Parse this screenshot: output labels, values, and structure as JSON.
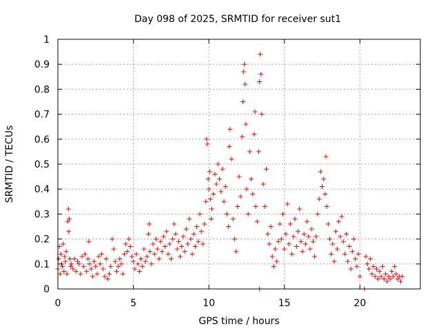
{
  "chart_data": {
    "type": "scatter",
    "title": "Day 098 of 2025, SRMTID for receiver sut1",
    "xlabel": "GPS time / hours",
    "ylabel": "SRMTID / TECUs",
    "xlim": [
      0,
      24
    ],
    "ylim": [
      0,
      1
    ],
    "xticks": [
      "0",
      "5",
      "10",
      "15",
      "20"
    ],
    "yticks": [
      "0",
      "0.1",
      "0.2",
      "0.3",
      "0.4",
      "0.5",
      "0.6",
      "0.7",
      "0.8",
      "0.9",
      "1"
    ],
    "grid": true,
    "marker": "+",
    "color": "#ff0000",
    "series": [
      {
        "name": "SRMTID",
        "points": [
          [
            0.0,
            0.08
          ],
          [
            0.05,
            0.12
          ],
          [
            0.1,
            0.17
          ],
          [
            0.15,
            0.06
          ],
          [
            0.2,
            0.14
          ],
          [
            0.25,
            0.1
          ],
          [
            0.3,
            0.09
          ],
          [
            0.35,
            0.18
          ],
          [
            0.4,
            0.07
          ],
          [
            0.45,
            0.13
          ],
          [
            0.5,
            0.11
          ],
          [
            0.55,
            0.15
          ],
          [
            0.6,
            0.06
          ],
          [
            0.65,
            0.27
          ],
          [
            0.7,
            0.32
          ],
          [
            0.72,
            0.23
          ],
          [
            0.75,
            0.28
          ],
          [
            0.8,
            0.12
          ],
          [
            0.85,
            0.09
          ],
          [
            0.9,
            0.1
          ],
          [
            1.0,
            0.08
          ],
          [
            1.1,
            0.12
          ],
          [
            1.2,
            0.07
          ],
          [
            1.3,
            0.11
          ],
          [
            1.4,
            0.1
          ],
          [
            1.5,
            0.06
          ],
          [
            1.6,
            0.13
          ],
          [
            1.7,
            0.09
          ],
          [
            1.8,
            0.14
          ],
          [
            1.9,
            0.07
          ],
          [
            2.0,
            0.12
          ],
          [
            2.05,
            0.19
          ],
          [
            2.1,
            0.1
          ],
          [
            2.2,
            0.08
          ],
          [
            2.3,
            0.05
          ],
          [
            2.4,
            0.11
          ],
          [
            2.5,
            0.09
          ],
          [
            2.6,
            0.06
          ],
          [
            2.7,
            0.13
          ],
          [
            2.8,
            0.1
          ],
          [
            2.9,
            0.14
          ],
          [
            3.0,
            0.08
          ],
          [
            3.1,
            0.05
          ],
          [
            3.2,
            0.12
          ],
          [
            3.3,
            0.04
          ],
          [
            3.4,
            0.06
          ],
          [
            3.5,
            0.09
          ],
          [
            3.6,
            0.2
          ],
          [
            3.7,
            0.16
          ],
          [
            3.8,
            0.11
          ],
          [
            3.9,
            0.07
          ],
          [
            4.0,
            0.09
          ],
          [
            4.1,
            0.12
          ],
          [
            4.2,
            0.1
          ],
          [
            4.3,
            0.06
          ],
          [
            4.4,
            0.14
          ],
          [
            4.5,
            0.18
          ],
          [
            4.6,
            0.15
          ],
          [
            4.7,
            0.2
          ],
          [
            4.8,
            0.17
          ],
          [
            4.9,
            0.13
          ],
          [
            5.0,
            0.11
          ],
          [
            5.1,
            0.08
          ],
          [
            5.2,
            0.14
          ],
          [
            5.3,
            0.1
          ],
          [
            5.4,
            0.07
          ],
          [
            5.5,
            0.12
          ],
          [
            5.6,
            0.09
          ],
          [
            5.7,
            0.16
          ],
          [
            5.8,
            0.11
          ],
          [
            5.9,
            0.13
          ],
          [
            6.0,
            0.22
          ],
          [
            6.05,
            0.26
          ],
          [
            6.1,
            0.15
          ],
          [
            6.2,
            0.1
          ],
          [
            6.3,
            0.18
          ],
          [
            6.4,
            0.14
          ],
          [
            6.5,
            0.2
          ],
          [
            6.6,
            0.16
          ],
          [
            6.7,
            0.12
          ],
          [
            6.8,
            0.19
          ],
          [
            6.9,
            0.15
          ],
          [
            7.0,
            0.21
          ],
          [
            7.1,
            0.17
          ],
          [
            7.2,
            0.23
          ],
          [
            7.3,
            0.14
          ],
          [
            7.4,
            0.18
          ],
          [
            7.5,
            0.12
          ],
          [
            7.6,
            0.2
          ],
          [
            7.7,
            0.26
          ],
          [
            7.8,
            0.22
          ],
          [
            7.9,
            0.16
          ],
          [
            8.0,
            0.19
          ],
          [
            8.1,
            0.13
          ],
          [
            8.2,
            0.17
          ],
          [
            8.3,
            0.21
          ],
          [
            8.4,
            0.15
          ],
          [
            8.5,
            0.24
          ],
          [
            8.6,
            0.18
          ],
          [
            8.7,
            0.28
          ],
          [
            8.8,
            0.2
          ],
          [
            8.9,
            0.14
          ],
          [
            9.0,
            0.22
          ],
          [
            9.1,
            0.17
          ],
          [
            9.2,
            0.25
          ],
          [
            9.3,
            0.19
          ],
          [
            9.4,
            0.3
          ],
          [
            9.5,
            0.23
          ],
          [
            9.6,
            0.18
          ],
          [
            9.7,
            0.26
          ],
          [
            9.8,
            0.35
          ],
          [
            9.85,
            0.6
          ],
          [
            9.9,
            0.58
          ],
          [
            9.95,
            0.44
          ],
          [
            10.0,
            0.4
          ],
          [
            10.05,
            0.47
          ],
          [
            10.1,
            0.36
          ],
          [
            10.15,
            0.28
          ],
          [
            10.2,
            0.32
          ],
          [
            10.3,
            0.38
          ],
          [
            10.4,
            0.46
          ],
          [
            10.5,
            0.42
          ],
          [
            10.6,
            0.5
          ],
          [
            10.7,
            0.44
          ],
          [
            10.8,
            0.39
          ],
          [
            10.9,
            0.48
          ],
          [
            11.0,
            0.35
          ],
          [
            11.1,
            0.41
          ],
          [
            11.2,
            0.3
          ],
          [
            11.3,
            0.25
          ],
          [
            11.35,
            0.57
          ],
          [
            11.4,
            0.64
          ],
          [
            11.5,
            0.52
          ],
          [
            11.6,
            0.28
          ],
          [
            11.7,
            0.2
          ],
          [
            11.8,
            0.15
          ],
          [
            11.9,
            0.33
          ],
          [
            12.0,
            0.45
          ],
          [
            12.1,
            0.37
          ],
          [
            12.2,
            0.61
          ],
          [
            12.25,
            0.75
          ],
          [
            12.3,
            0.87
          ],
          [
            12.35,
            0.9
          ],
          [
            12.4,
            0.82
          ],
          [
            12.45,
            0.66
          ],
          [
            12.5,
            0.4
          ],
          [
            12.6,
            0.3
          ],
          [
            12.7,
            0.55
          ],
          [
            12.8,
            0.44
          ],
          [
            12.9,
            0.38
          ],
          [
            13.0,
            0.62
          ],
          [
            13.05,
            0.71
          ],
          [
            13.1,
            0.33
          ],
          [
            13.2,
            0.27
          ],
          [
            13.3,
            0.55
          ],
          [
            13.35,
            0.83
          ],
          [
            13.4,
            0.94
          ],
          [
            13.45,
            0.86
          ],
          [
            13.5,
            0.7
          ],
          [
            13.6,
            0.42
          ],
          [
            13.7,
            0.33
          ],
          [
            13.8,
            0.48
          ],
          [
            13.9,
            0.22
          ],
          [
            14.0,
            0.18
          ],
          [
            14.1,
            0.25
          ],
          [
            14.2,
            0.13
          ],
          [
            14.3,
            0.09
          ],
          [
            14.4,
            0.16
          ],
          [
            14.5,
            0.11
          ],
          [
            14.6,
            0.19
          ],
          [
            14.7,
            0.26
          ],
          [
            14.8,
            0.2
          ],
          [
            14.9,
            0.3
          ],
          [
            15.0,
            0.16
          ],
          [
            15.1,
            0.22
          ],
          [
            15.2,
            0.34
          ],
          [
            15.3,
            0.18
          ],
          [
            15.4,
            0.26
          ],
          [
            15.5,
            0.14
          ],
          [
            15.6,
            0.21
          ],
          [
            15.7,
            0.28
          ],
          [
            15.8,
            0.17
          ],
          [
            15.9,
            0.23
          ],
          [
            16.0,
            0.32
          ],
          [
            16.1,
            0.19
          ],
          [
            16.2,
            0.15
          ],
          [
            16.3,
            0.22
          ],
          [
            16.4,
            0.18
          ],
          [
            16.5,
            0.27
          ],
          [
            16.6,
            0.21
          ],
          [
            16.7,
            0.16
          ],
          [
            16.8,
            0.24
          ],
          [
            16.9,
            0.19
          ],
          [
            17.0,
            0.13
          ],
          [
            17.1,
            0.21
          ],
          [
            17.2,
            0.3
          ],
          [
            17.3,
            0.36
          ],
          [
            17.4,
            0.47
          ],
          [
            17.5,
            0.41
          ],
          [
            17.6,
            0.44
          ],
          [
            17.7,
            0.38
          ],
          [
            17.75,
            0.53
          ],
          [
            17.8,
            0.33
          ],
          [
            17.9,
            0.26
          ],
          [
            18.0,
            0.2
          ],
          [
            18.1,
            0.14
          ],
          [
            18.2,
            0.18
          ],
          [
            18.3,
            0.11
          ],
          [
            18.4,
            0.23
          ],
          [
            18.5,
            0.16
          ],
          [
            18.6,
            0.27
          ],
          [
            18.7,
            0.21
          ],
          [
            18.8,
            0.29
          ],
          [
            18.9,
            0.19
          ],
          [
            19.0,
            0.14
          ],
          [
            19.1,
            0.22
          ],
          [
            19.2,
            0.11
          ],
          [
            19.3,
            0.17
          ],
          [
            19.4,
            0.08
          ],
          [
            19.5,
            0.15
          ],
          [
            19.6,
            0.2
          ],
          [
            19.7,
            0.12
          ],
          [
            19.8,
            0.09
          ],
          [
            19.9,
            0.14
          ],
          [
            20.0,
            0.05
          ],
          [
            20.3,
            0.0
          ],
          [
            20.4,
            0.13
          ],
          [
            20.5,
            0.1
          ],
          [
            20.6,
            0.08
          ],
          [
            20.7,
            0.12
          ],
          [
            20.8,
            0.06
          ],
          [
            20.9,
            0.09
          ],
          [
            21.0,
            0.05
          ],
          [
            21.1,
            0.08
          ],
          [
            21.2,
            0.04
          ],
          [
            21.3,
            0.07
          ],
          [
            21.4,
            0.05
          ],
          [
            21.5,
            0.09
          ],
          [
            21.6,
            0.04
          ],
          [
            21.7,
            0.06
          ],
          [
            21.8,
            0.03
          ],
          [
            21.9,
            0.05
          ],
          [
            22.0,
            0.04
          ],
          [
            22.1,
            0.07
          ],
          [
            22.2,
            0.05
          ],
          [
            22.3,
            0.09
          ],
          [
            22.4,
            0.06
          ],
          [
            22.5,
            0.04
          ],
          [
            22.6,
            0.05
          ],
          [
            22.7,
            0.03
          ],
          [
            22.8,
            0.05
          ],
          [
            13.35,
            0.0
          ]
        ]
      }
    ]
  }
}
